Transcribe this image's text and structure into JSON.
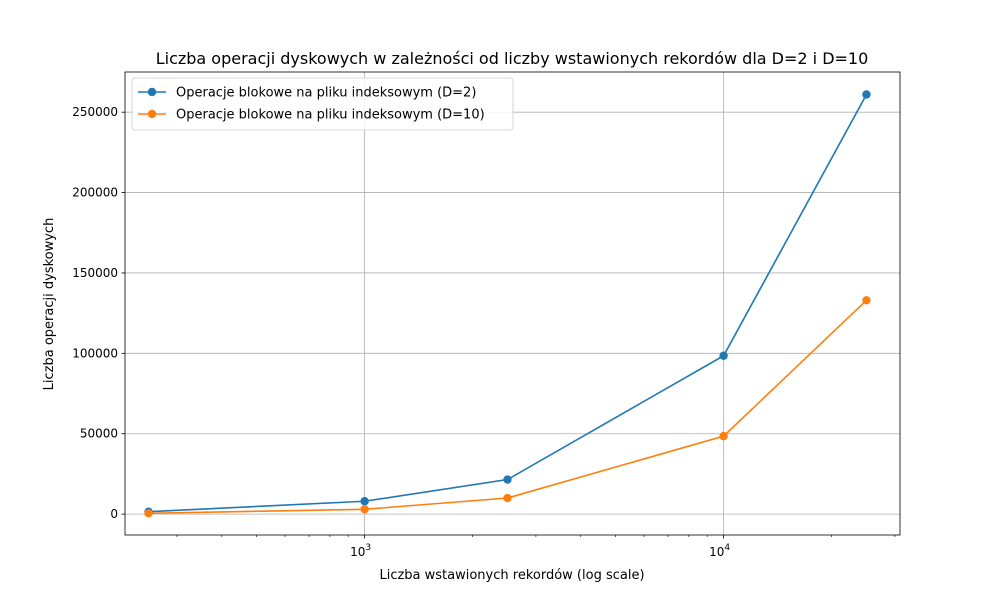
{
  "chart_data": {
    "type": "line",
    "title": "Liczba operacji dyskowych w zależności od liczby wstawionych rekordów dla D=2 i D=10",
    "xlabel": "Liczba wstawionych rekordów (log scale)",
    "ylabel": "Liczba operacji dyskowych",
    "x_scale": "log",
    "xlim": [
      215,
      31000
    ],
    "ylim": [
      -13000,
      275000
    ],
    "grid": true,
    "legend_position": "top-left",
    "x": [
      250,
      1000,
      2500,
      10000,
      25000
    ],
    "x_ticks": [
      {
        "value": 1000,
        "base": "10",
        "exp": "3"
      },
      {
        "value": 10000,
        "base": "10",
        "exp": "4"
      }
    ],
    "y_ticks": [
      {
        "value": 0,
        "label": "0"
      },
      {
        "value": 50000,
        "label": "50000"
      },
      {
        "value": 100000,
        "label": "100000"
      },
      {
        "value": 150000,
        "label": "150000"
      },
      {
        "value": 200000,
        "label": "200000"
      },
      {
        "value": 250000,
        "label": "250000"
      }
    ],
    "series": [
      {
        "name": "Operacje blokowe na pliku indeksowym (D=2)",
        "color": "#1f77b4",
        "values": [
          1500,
          8000,
          21500,
          98500,
          261000
        ]
      },
      {
        "name": "Operacje blokowe na pliku indeksowym (D=10)",
        "color": "#ff7f0e",
        "values": [
          500,
          3000,
          10000,
          48500,
          133000
        ]
      }
    ]
  }
}
